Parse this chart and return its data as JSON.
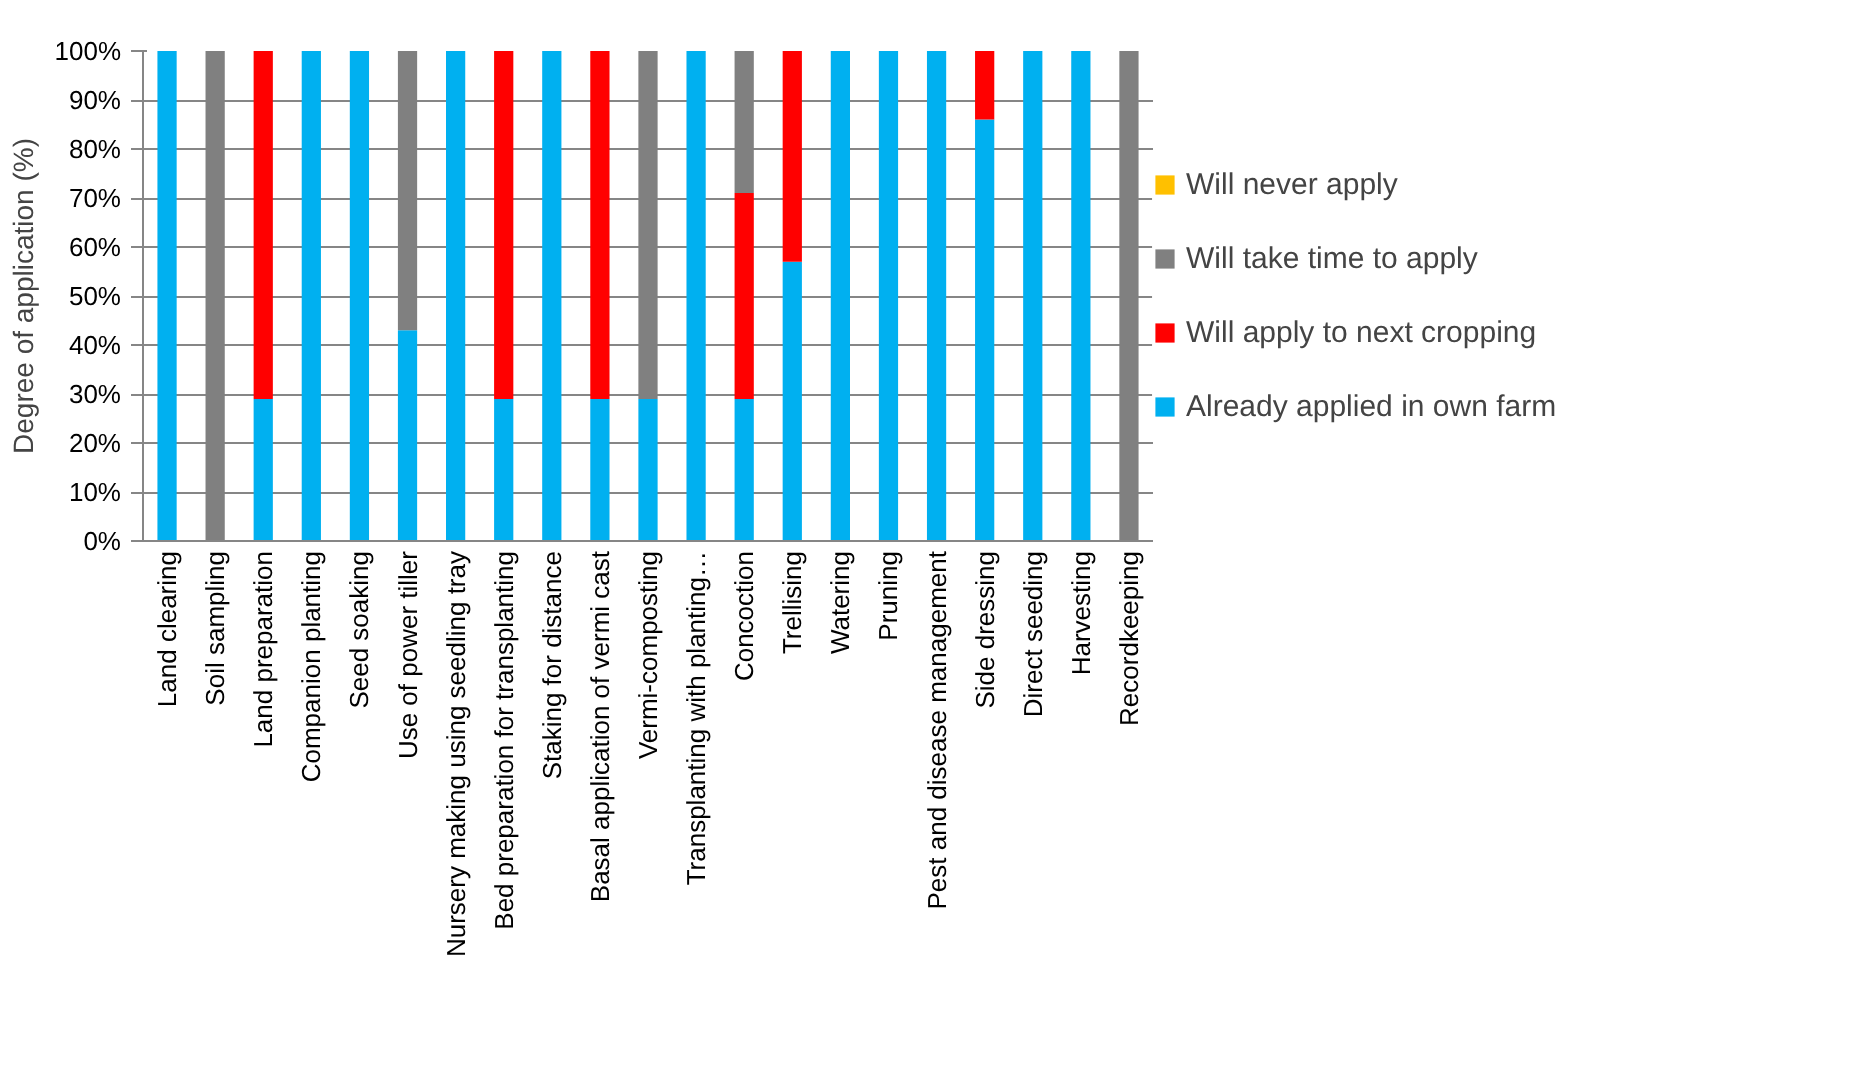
{
  "chart_data": {
    "type": "bar",
    "stacked": true,
    "ylabel": "Degree of application (%)",
    "categories": [
      "Land clearing",
      "Soil sampling",
      "Land preparation",
      "Companion planting",
      "Seed soaking",
      "Use of power tiller",
      "Nursery making using seedling tray",
      "Bed preparation for transplanting",
      "Staking for distance",
      "Basal application of vermi cast",
      "Vermi-composting",
      "Transplanting with planting…",
      "Concoction",
      "Trellising",
      "Watering",
      "Pruning",
      "Pest and disease management",
      "Side dressing",
      "Direct seeding",
      "Harvesting",
      "Recordkeeping"
    ],
    "series": [
      {
        "name": "Already applied in own farm",
        "color": "#00b0f0",
        "values": [
          100,
          0,
          29,
          100,
          100,
          43,
          100,
          29,
          100,
          29,
          29,
          100,
          29,
          57,
          100,
          100,
          100,
          86,
          100,
          100,
          0
        ]
      },
      {
        "name": "Will apply to next cropping",
        "color": "#ff0000",
        "values": [
          0,
          0,
          71,
          0,
          0,
          0,
          0,
          71,
          0,
          71,
          0,
          0,
          42,
          43,
          0,
          0,
          0,
          14,
          0,
          0,
          0
        ]
      },
      {
        "name": "Will take time to apply",
        "color": "#808080",
        "values": [
          0,
          100,
          0,
          0,
          0,
          57,
          0,
          0,
          0,
          0,
          71,
          0,
          29,
          0,
          0,
          0,
          0,
          0,
          0,
          0,
          100
        ]
      },
      {
        "name": "Will never apply",
        "color": "#ffc000",
        "values": [
          0,
          0,
          0,
          0,
          0,
          0,
          0,
          0,
          0,
          0,
          0,
          0,
          0,
          0,
          0,
          0,
          0,
          0,
          0,
          0,
          0
        ]
      }
    ],
    "ylim": [
      0,
      100
    ],
    "yticks": [
      {
        "value": 0,
        "label": "0%"
      },
      {
        "value": 10,
        "label": "10%"
      },
      {
        "value": 20,
        "label": "20%"
      },
      {
        "value": 30,
        "label": "30%"
      },
      {
        "value": 40,
        "label": "40%"
      },
      {
        "value": 50,
        "label": "50%"
      },
      {
        "value": 60,
        "label": "60%"
      },
      {
        "value": 70,
        "label": "70%"
      },
      {
        "value": 80,
        "label": "80%"
      },
      {
        "value": 90,
        "label": "90%"
      },
      {
        "value": 100,
        "label": "100%"
      }
    ],
    "grid": "y",
    "legend": "right"
  }
}
